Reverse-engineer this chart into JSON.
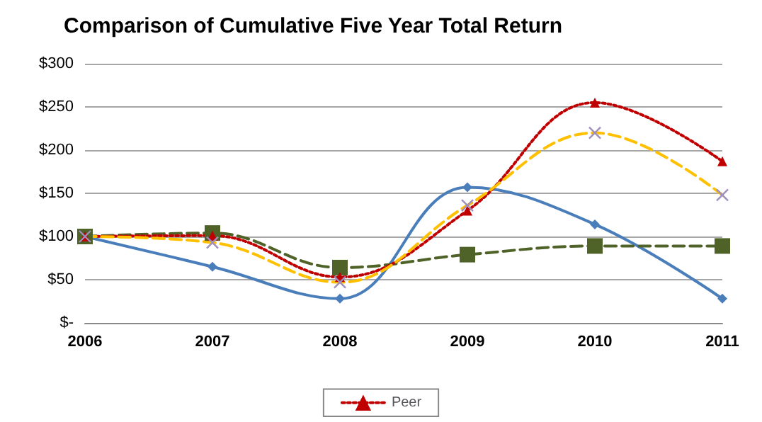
{
  "chart_data": {
    "type": "line",
    "title": "Comparison of Cumulative Five Year Total Return",
    "categories": [
      "2006",
      "2007",
      "2008",
      "2009",
      "2010",
      "2011"
    ],
    "series": [
      {
        "color": "#4a7ebb",
        "marker": "diamond",
        "line_style": "solid",
        "values": [
          100,
          65,
          28,
          157,
          114,
          28
        ]
      },
      {
        "color": "#4f6228",
        "marker": "square",
        "line_style": "dashed",
        "values": [
          100,
          104,
          64,
          79,
          89,
          89
        ]
      },
      {
        "name": "Peer",
        "color": "#c00000",
        "marker": "triangle",
        "line_style": "dotted",
        "values": [
          100,
          101,
          53,
          130,
          255,
          187
        ]
      },
      {
        "color": "#ffc000",
        "marker": "cross",
        "line_style": "dashed",
        "values": [
          100,
          93,
          47,
          136,
          220,
          148
        ]
      }
    ],
    "ylim": [
      0,
      300
    ],
    "yticks": [
      {
        "value": 0,
        "label": "$-"
      },
      {
        "value": 50,
        "label": "$50"
      },
      {
        "value": 100,
        "label": "$100"
      },
      {
        "value": 150,
        "label": "$150"
      },
      {
        "value": 200,
        "label": "$200"
      },
      {
        "value": 250,
        "label": "$250"
      },
      {
        "value": 300,
        "label": "$300"
      }
    ],
    "grid": "y",
    "legend": "bottom"
  }
}
